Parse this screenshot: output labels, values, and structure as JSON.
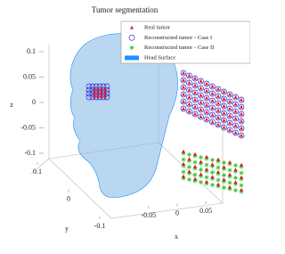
{
  "chart_data": {
    "type": "scatter3d",
    "title": "Tumor segmentation",
    "xlabel": "x",
    "ylabel": "y",
    "zlabel": "z",
    "xlim": [
      -0.07,
      0.07
    ],
    "xticks": [
      -0.05,
      0,
      0.05
    ],
    "ylim": [
      -0.1,
      0.1
    ],
    "yticks": [
      0.1,
      0,
      -0.1
    ],
    "zlim": [
      -0.1,
      0.1
    ],
    "zticks": [
      0.1,
      0.05,
      0,
      -0.05,
      -0.1
    ],
    "series": [
      {
        "name": "Real tumor",
        "color": "#e8121a",
        "marker": "triangle"
      },
      {
        "name": "Reconstructed tumor - Case I",
        "color": "#2a2ad0",
        "marker": "circle"
      },
      {
        "name": "Reconstructed tumor - Case II",
        "color": "#2fc42f",
        "marker": "star"
      },
      {
        "name": "Head Surface",
        "color": "#1e90ff",
        "marker": "surface"
      }
    ]
  }
}
